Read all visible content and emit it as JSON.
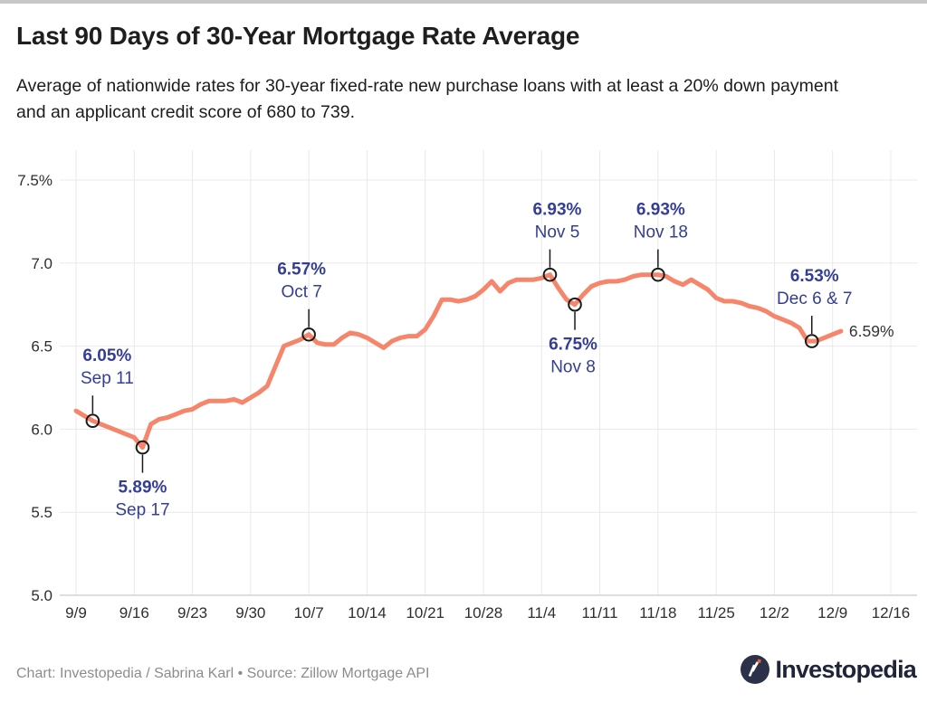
{
  "header": {
    "title": "Last 90 Days of 30-Year Mortgage Rate Average",
    "subtitle": "Average of nationwide rates for 30-year fixed-rate new purchase loans with at least a 20% down payment and an applicant credit score of 680 to 739."
  },
  "footer": {
    "credit": "Chart: Investopedia / Sabrina Karl • Source: Zillow Mortgage API",
    "logo_text": "Investopedia"
  },
  "colors": {
    "line": "#F5866B",
    "grid": "#E9E9E9",
    "axis_baseline": "#DEDEDE",
    "annotation_text": "#333E94",
    "leader_line": "#1A1A1A",
    "marker_stroke": "#1A1A1A",
    "axis_text": "#2E2E2E",
    "end_label_text": "#333333",
    "title_text": "#1E1E1E",
    "credit_text": "#8C8C8C",
    "logo_navy": "#2B3148",
    "logo_orange": "#E9633B",
    "background": "#FFFFFF"
  },
  "chart_data": {
    "type": "line",
    "title": "Last 90 Days of 30-Year Mortgage Rate Average",
    "xlabel": "",
    "ylabel": "",
    "ylim": [
      5.0,
      7.5
    ],
    "grid": true,
    "y_ticks": [
      {
        "label": "7.5%",
        "value": 7.5
      },
      {
        "label": "7.0",
        "value": 7.0
      },
      {
        "label": "6.5",
        "value": 6.5
      },
      {
        "label": "6.0",
        "value": 6.0
      },
      {
        "label": "5.5",
        "value": 5.5
      },
      {
        "label": "5.0",
        "value": 5.0
      }
    ],
    "x_ticks": [
      {
        "label": "9/9",
        "day": 0
      },
      {
        "label": "9/16",
        "day": 7
      },
      {
        "label": "9/23",
        "day": 14
      },
      {
        "label": "9/30",
        "day": 21
      },
      {
        "label": "10/7",
        "day": 28
      },
      {
        "label": "10/14",
        "day": 35
      },
      {
        "label": "10/21",
        "day": 42
      },
      {
        "label": "10/28",
        "day": 49
      },
      {
        "label": "11/4",
        "day": 56
      },
      {
        "label": "11/11",
        "day": 63
      },
      {
        "label": "11/18",
        "day": 70
      },
      {
        "label": "11/25",
        "day": 77
      },
      {
        "label": "12/2",
        "day": 84
      },
      {
        "label": "12/9",
        "day": 91
      },
      {
        "label": "12/16",
        "day": 98
      }
    ],
    "dates": [
      "Sep 9",
      "Sep 10",
      "Sep 11",
      "Sep 12",
      "Sep 13",
      "Sep 14",
      "Sep 15",
      "Sep 16",
      "Sep 17",
      "Sep 18",
      "Sep 19",
      "Sep 20",
      "Sep 21",
      "Sep 22",
      "Sep 23",
      "Sep 24",
      "Sep 25",
      "Sep 26",
      "Sep 27",
      "Sep 28",
      "Sep 29",
      "Sep 30",
      "Oct 1",
      "Oct 2",
      "Oct 3",
      "Oct 4",
      "Oct 5",
      "Oct 6",
      "Oct 7",
      "Oct 8",
      "Oct 9",
      "Oct 10",
      "Oct 11",
      "Oct 12",
      "Oct 13",
      "Oct 14",
      "Oct 15",
      "Oct 16",
      "Oct 17",
      "Oct 18",
      "Oct 19",
      "Oct 20",
      "Oct 21",
      "Oct 22",
      "Oct 23",
      "Oct 24",
      "Oct 25",
      "Oct 26",
      "Oct 27",
      "Oct 28",
      "Oct 29",
      "Oct 30",
      "Oct 31",
      "Nov 1",
      "Nov 2",
      "Nov 3",
      "Nov 4",
      "Nov 5",
      "Nov 6",
      "Nov 7",
      "Nov 8",
      "Nov 9",
      "Nov 10",
      "Nov 11",
      "Nov 12",
      "Nov 13",
      "Nov 14",
      "Nov 15",
      "Nov 16",
      "Nov 17",
      "Nov 18",
      "Nov 19",
      "Nov 20",
      "Nov 21",
      "Nov 22",
      "Nov 23",
      "Nov 24",
      "Nov 25",
      "Nov 26",
      "Nov 27",
      "Nov 28",
      "Nov 29",
      "Nov 30",
      "Dec 1",
      "Dec 2",
      "Dec 3",
      "Dec 4",
      "Dec 5",
      "Dec 6",
      "Dec 7",
      "Dec 8",
      "Dec 9",
      "Dec 10"
    ],
    "values": [
      6.11,
      6.08,
      6.05,
      6.03,
      6.01,
      5.99,
      5.97,
      5.95,
      5.89,
      6.03,
      6.06,
      6.07,
      6.09,
      6.11,
      6.12,
      6.15,
      6.17,
      6.17,
      6.17,
      6.18,
      6.16,
      6.19,
      6.22,
      6.26,
      6.38,
      6.5,
      6.52,
      6.54,
      6.57,
      6.52,
      6.51,
      6.51,
      6.55,
      6.58,
      6.57,
      6.55,
      6.52,
      6.49,
      6.53,
      6.55,
      6.56,
      6.56,
      6.6,
      6.68,
      6.78,
      6.78,
      6.77,
      6.78,
      6.8,
      6.84,
      6.89,
      6.83,
      6.88,
      6.9,
      6.9,
      6.9,
      6.91,
      6.93,
      6.85,
      6.78,
      6.75,
      6.81,
      6.86,
      6.88,
      6.89,
      6.89,
      6.9,
      6.92,
      6.93,
      6.93,
      6.93,
      6.92,
      6.89,
      6.87,
      6.9,
      6.87,
      6.84,
      6.79,
      6.77,
      6.77,
      6.76,
      6.74,
      6.73,
      6.71,
      6.68,
      6.66,
      6.64,
      6.61,
      6.53,
      6.53,
      6.55,
      6.57,
      6.59
    ],
    "annotations": [
      {
        "value_label": "6.05%",
        "date_label": "Sep 11",
        "day": 2,
        "value": 6.05,
        "side": "above",
        "dx": 16
      },
      {
        "value_label": "5.89%",
        "date_label": "Sep 17",
        "day": 8,
        "value": 5.89,
        "side": "below",
        "dx": 0
      },
      {
        "value_label": "6.57%",
        "date_label": "Oct 7",
        "day": 28,
        "value": 6.57,
        "side": "above",
        "dx": -8
      },
      {
        "value_label": "6.93%",
        "date_label": "Nov 5",
        "day": 57,
        "value": 6.93,
        "side": "above",
        "dx": 8
      },
      {
        "value_label": "6.75%",
        "date_label": "Nov 8",
        "day": 60,
        "value": 6.75,
        "side": "below",
        "dx": -2
      },
      {
        "value_label": "6.93%",
        "date_label": "Nov 18",
        "day": 70,
        "value": 6.93,
        "side": "above",
        "dx": 3
      },
      {
        "value_label": "6.53%",
        "date_label": "Dec 6 & 7",
        "day": 88.5,
        "value": 6.53,
        "side": "above",
        "dx": 3
      }
    ],
    "end_label": "6.59%",
    "legend": null
  }
}
